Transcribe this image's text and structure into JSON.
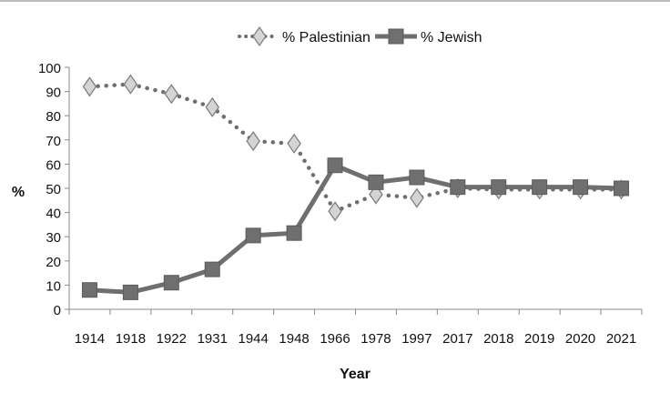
{
  "chart_data": {
    "type": "line",
    "title": "",
    "xlabel": "Year",
    "ylabel": "%",
    "ylim": [
      0,
      100
    ],
    "yticks": [
      0,
      10,
      20,
      30,
      40,
      50,
      60,
      70,
      80,
      90,
      100
    ],
    "grid": false,
    "legend_placement": "top",
    "categories": [
      "1914",
      "1918",
      "1922",
      "1931",
      "1944",
      "1948",
      "1966",
      "1978",
      "1997",
      "2017",
      "2018",
      "2019",
      "2020",
      "2021"
    ],
    "series": [
      {
        "name": "% Palestinian",
        "style": "dotted",
        "marker": "diamond",
        "color": "#6f6f6f",
        "marker_fill": "#d4d4d4",
        "values": [
          92,
          93,
          89,
          83.5,
          69.5,
          68.5,
          40.5,
          47.5,
          46,
          50,
          49.5,
          49.5,
          49.5,
          49.5
        ]
      },
      {
        "name": "% Jewish",
        "style": "solid",
        "marker": "square",
        "color": "#6f6f6f",
        "marker_fill": "#6f6f6f",
        "values": [
          8,
          7,
          11,
          16.5,
          30.5,
          31.5,
          59.5,
          52.5,
          54.5,
          50.5,
          50.5,
          50.5,
          50.5,
          50
        ]
      }
    ]
  }
}
